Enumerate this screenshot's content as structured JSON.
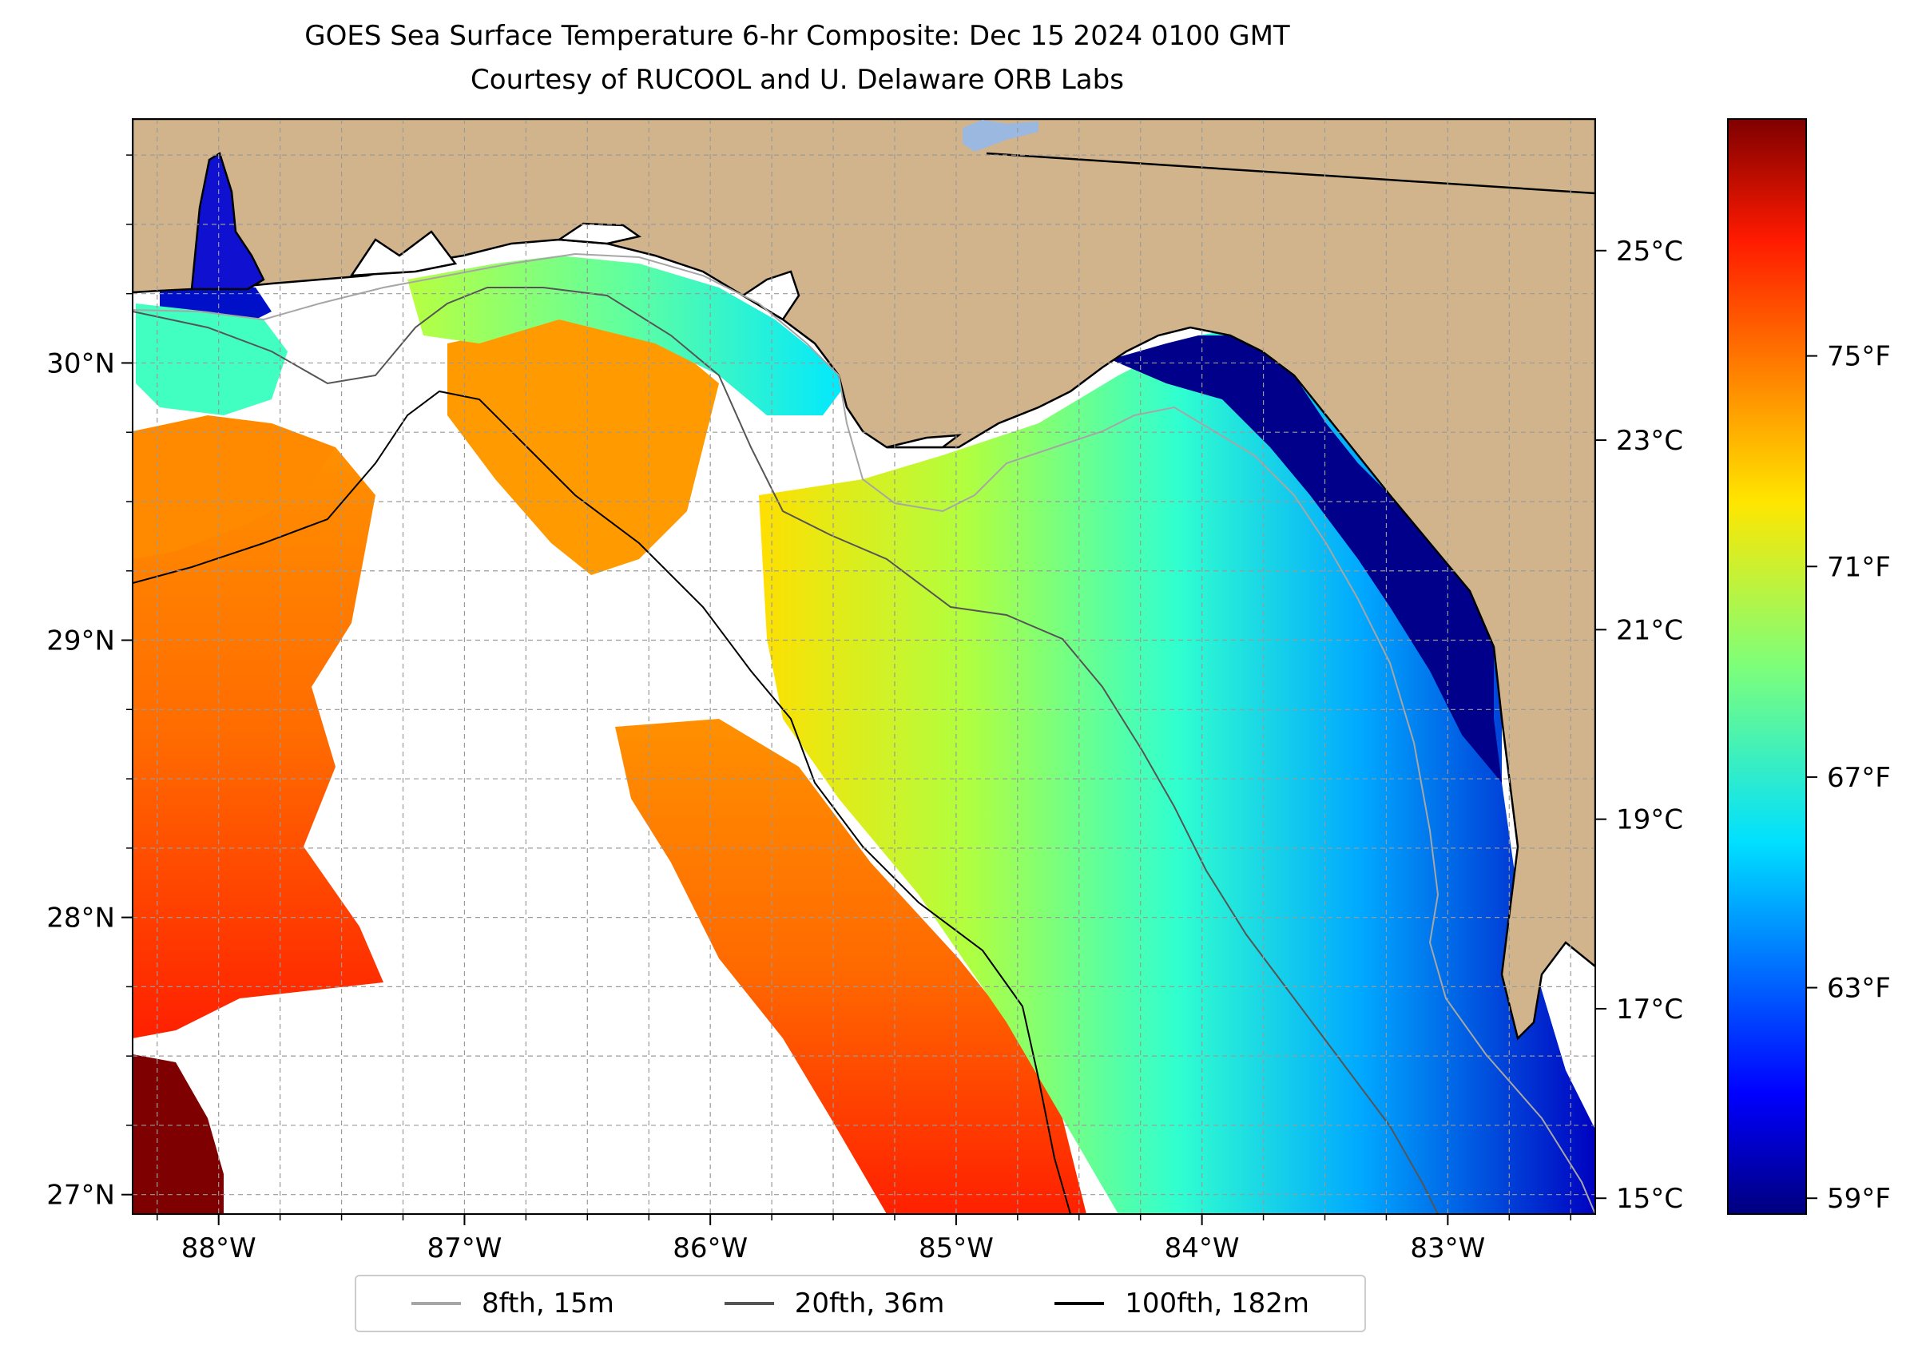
{
  "title": "GOES Sea Surface Temperature 6-hr Composite: Dec 15 2024 0100 GMT",
  "subtitle": "Courtesy of RUCOOL and U. Delaware ORB Labs",
  "map": {
    "lon_range": [
      -88.35,
      -82.4
    ],
    "lat_range": [
      26.93,
      30.88
    ],
    "lon_ticks": [
      {
        "value": -88,
        "label": "88°W"
      },
      {
        "value": -87,
        "label": "87°W"
      },
      {
        "value": -86,
        "label": "86°W"
      },
      {
        "value": -85,
        "label": "85°W"
      },
      {
        "value": -84,
        "label": "84°W"
      },
      {
        "value": -83,
        "label": "83°W"
      }
    ],
    "lat_ticks": [
      {
        "value": 27,
        "label": "27°N"
      },
      {
        "value": 28,
        "label": "28°N"
      },
      {
        "value": 29,
        "label": "29°N"
      },
      {
        "value": 30,
        "label": "30°N"
      }
    ],
    "gridlines": true,
    "land_color": "#d2b48c",
    "no_data_color": "#ffffff"
  },
  "colorbar": {
    "colormap": "jet",
    "range_f": [
      58.7,
      79.5
    ],
    "fahrenheit_ticks": [
      {
        "value": 59,
        "label": "59°F"
      },
      {
        "value": 63,
        "label": "63°F"
      },
      {
        "value": 67,
        "label": "67°F"
      },
      {
        "value": 71,
        "label": "71°F"
      },
      {
        "value": 75,
        "label": "75°F"
      }
    ],
    "celsius_ticks": [
      {
        "value": 15,
        "label": "15°C"
      },
      {
        "value": 17,
        "label": "17°C"
      },
      {
        "value": 19,
        "label": "19°C"
      },
      {
        "value": 21,
        "label": "21°C"
      },
      {
        "value": 23,
        "label": "23°C"
      },
      {
        "value": 25,
        "label": "25°C"
      }
    ]
  },
  "legend": {
    "placement": "bottom-center",
    "items": [
      {
        "label": "8fth, 15m",
        "color": "#a6a6a6"
      },
      {
        "label": "20fth, 36m",
        "color": "#555555"
      },
      {
        "label": "100fth, 182m",
        "color": "#000000"
      }
    ]
  }
}
